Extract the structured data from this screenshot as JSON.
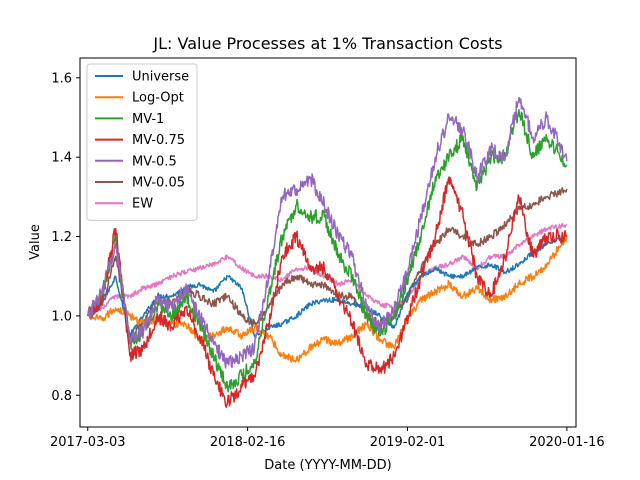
{
  "chart_data": {
    "type": "line",
    "title": "JL: Value Processes at 1% Transaction Costs",
    "xlabel": "Date (YYYY-MM-DD)",
    "ylabel": "Value",
    "xlim": [
      "2017-02-14",
      "2020-02-05"
    ],
    "ylim": [
      0.72,
      1.65
    ],
    "xticks": [
      "2017-03-03",
      "2018-02-16",
      "2019-02-01",
      "2020-01-16"
    ],
    "yticks": [
      "0.8",
      "1.0",
      "1.2",
      "1.4",
      "1.6"
    ],
    "grid": false,
    "legend_position": "upper-left",
    "x": [
      "2017-03-03",
      "2017-04-03",
      "2017-05-03",
      "2017-06-03",
      "2017-07-03",
      "2017-08-03",
      "2017-09-03",
      "2017-10-03",
      "2017-11-03",
      "2017-12-03",
      "2018-01-03",
      "2018-02-03",
      "2018-03-03",
      "2018-04-03",
      "2018-05-03",
      "2018-06-03",
      "2018-07-03",
      "2018-08-03",
      "2018-09-03",
      "2018-10-03",
      "2018-11-03",
      "2018-12-03",
      "2019-01-03",
      "2019-02-03",
      "2019-03-03",
      "2019-04-03",
      "2019-05-03",
      "2019-06-03",
      "2019-07-03",
      "2019-08-03",
      "2019-09-03",
      "2019-10-03",
      "2019-11-03",
      "2019-12-03",
      "2020-01-16"
    ],
    "series": [
      {
        "name": "Universe",
        "color": "#1f77b4",
        "values": [
          1.0,
          1.03,
          1.1,
          0.95,
          1.0,
          1.05,
          1.05,
          1.07,
          1.08,
          1.06,
          1.1,
          1.07,
          0.95,
          0.97,
          0.98,
          1.0,
          1.03,
          1.04,
          1.04,
          1.03,
          1.02,
          1.0,
          0.97,
          1.06,
          1.1,
          1.12,
          1.1,
          1.1,
          1.12,
          1.13,
          1.11,
          1.13,
          1.16,
          1.18,
          1.2
        ]
      },
      {
        "name": "Log-Opt",
        "color": "#ff7f0e",
        "values": [
          1.0,
          0.99,
          1.02,
          1.0,
          0.98,
          0.99,
          0.98,
          0.98,
          0.94,
          0.95,
          0.97,
          0.95,
          0.97,
          0.95,
          0.9,
          0.89,
          0.92,
          0.94,
          0.93,
          0.95,
          0.98,
          0.94,
          0.92,
          1.0,
          1.04,
          1.06,
          1.08,
          1.05,
          1.07,
          1.04,
          1.05,
          1.08,
          1.1,
          1.13,
          1.2
        ]
      },
      {
        "name": "MV-1",
        "color": "#2ca02c",
        "values": [
          1.0,
          1.05,
          1.2,
          0.93,
          0.96,
          1.03,
          1.0,
          1.05,
          0.98,
          0.9,
          0.82,
          0.85,
          0.88,
          1.05,
          1.2,
          1.28,
          1.25,
          1.25,
          1.15,
          1.1,
          1.0,
          0.95,
          1.0,
          1.1,
          1.2,
          1.35,
          1.4,
          1.45,
          1.32,
          1.4,
          1.4,
          1.52,
          1.4,
          1.45,
          1.38
        ]
      },
      {
        "name": "MV-0.75",
        "color": "#d62728",
        "values": [
          1.0,
          1.04,
          1.22,
          0.9,
          0.92,
          1.0,
          0.97,
          1.02,
          0.95,
          0.85,
          0.78,
          0.82,
          0.85,
          0.98,
          1.15,
          1.2,
          1.12,
          1.12,
          1.05,
          0.98,
          0.88,
          0.86,
          0.9,
          1.0,
          1.1,
          1.2,
          1.35,
          1.25,
          1.1,
          1.05,
          1.15,
          1.3,
          1.15,
          1.2,
          1.2
        ]
      },
      {
        "name": "MV-0.5",
        "color": "#9467bd",
        "values": [
          1.0,
          1.06,
          1.18,
          0.94,
          0.96,
          1.05,
          1.02,
          1.07,
          1.0,
          0.93,
          0.88,
          0.9,
          0.92,
          1.1,
          1.3,
          1.32,
          1.35,
          1.28,
          1.2,
          1.15,
          1.02,
          0.97,
          1.02,
          1.12,
          1.25,
          1.4,
          1.5,
          1.47,
          1.35,
          1.42,
          1.4,
          1.55,
          1.45,
          1.5,
          1.39
        ]
      },
      {
        "name": "MV-0.05",
        "color": "#8c564b",
        "values": [
          1.0,
          1.03,
          1.15,
          0.95,
          0.98,
          1.05,
          1.03,
          1.07,
          1.05,
          1.03,
          1.05,
          1.0,
          0.98,
          1.02,
          1.08,
          1.1,
          1.08,
          1.08,
          1.05,
          1.05,
          1.0,
          0.98,
          1.0,
          1.05,
          1.12,
          1.18,
          1.22,
          1.2,
          1.18,
          1.2,
          1.23,
          1.27,
          1.28,
          1.3,
          1.32
        ]
      },
      {
        "name": "EW",
        "color": "#e377c2",
        "values": [
          1.0,
          1.02,
          1.05,
          1.05,
          1.07,
          1.08,
          1.1,
          1.11,
          1.12,
          1.13,
          1.15,
          1.12,
          1.1,
          1.1,
          1.09,
          1.12,
          1.12,
          1.1,
          1.08,
          1.09,
          1.05,
          1.03,
          1.02,
          1.05,
          1.1,
          1.12,
          1.13,
          1.15,
          1.12,
          1.15,
          1.15,
          1.18,
          1.2,
          1.22,
          1.23
        ]
      }
    ]
  }
}
